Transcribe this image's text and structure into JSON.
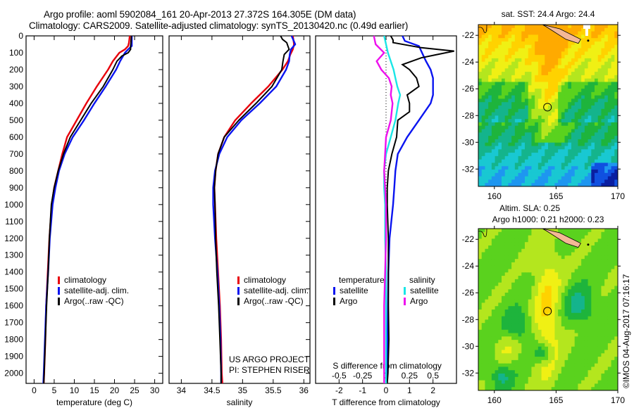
{
  "header": {
    "line1": "Argo profile: aoml 5902084_161 20-Apr-2013 27.372S 164.305E (DM data)",
    "line2": "Climatology: CARS2009. Satellite-adjusted climatology: synTS_20130420.nc (0.49d earlier)"
  },
  "credit": "©IMOS 04-Aug-2017 07:16:17",
  "project_note": [
    "US ARGO PROJECT",
    "PI: STEPHEN RISER"
  ],
  "colors": {
    "climatology": "#e8000b",
    "satellite": "#0a14f0",
    "argo": "#000000",
    "s_satellite": "#19e6e6",
    "s_argo": "#ee10ee"
  },
  "chart_data": [
    {
      "type": "line",
      "name": "temperature-profile",
      "title": "",
      "xlabel": "temperature (deg C)",
      "ylabel": "",
      "xlim": [
        -2,
        32
      ],
      "ylim": [
        2060,
        0
      ],
      "xticks": [
        0,
        5,
        10,
        15,
        20,
        25,
        30
      ],
      "yticks": [
        0,
        100,
        200,
        300,
        400,
        500,
        600,
        700,
        800,
        900,
        1000,
        1100,
        1200,
        1300,
        1400,
        1500,
        1600,
        1700,
        1800,
        1900,
        2000
      ],
      "grid": false,
      "legend": {
        "placement": "middle-right",
        "entries": [
          "climatology",
          "satellite-adj. clim.",
          "Argo(..raw -QC)"
        ]
      },
      "series": [
        {
          "name": "climatology",
          "color_key": "climatology",
          "depth": [
            0,
            40,
            60,
            80,
            100,
            150,
            200,
            300,
            400,
            500,
            600,
            700,
            800,
            900,
            1000,
            1200,
            1400,
            1600,
            1800,
            2000,
            2060
          ],
          "values": [
            23.8,
            23.6,
            23.4,
            22.6,
            21.2,
            19.6,
            18.4,
            15.6,
            13.0,
            10.6,
            8.2,
            7.0,
            6.0,
            5.0,
            4.4,
            3.8,
            3.4,
            3.0,
            2.8,
            2.5,
            2.4
          ]
        },
        {
          "name": "satellite-adj. clim.",
          "color_key": "satellite",
          "depth": [
            0,
            40,
            60,
            80,
            100,
            150,
            200,
            300,
            400,
            500,
            600,
            700,
            800,
            900,
            1000,
            1200,
            1400,
            1600,
            1800,
            2000,
            2060
          ],
          "values": [
            24.3,
            24.3,
            24.3,
            23.4,
            22.6,
            21.4,
            20.4,
            17.8,
            15.0,
            12.4,
            9.6,
            7.6,
            6.2,
            5.3,
            4.6,
            3.9,
            3.5,
            3.0,
            2.7,
            2.4,
            2.3
          ]
        },
        {
          "name": "Argo(..raw -QC)",
          "color_key": "argo",
          "depth": [
            0,
            40,
            60,
            80,
            100,
            120,
            150,
            200,
            300,
            400,
            500,
            600,
            700,
            800,
            900,
            1000,
            1200,
            1400,
            1600,
            1800,
            2000,
            2060
          ],
          "values": [
            24.2,
            24.1,
            24.0,
            24.0,
            23.4,
            21.8,
            20.6,
            19.6,
            17.2,
            14.2,
            11.6,
            9.0,
            7.3,
            6.0,
            5.0,
            4.3,
            3.8,
            3.5,
            3.1,
            2.8,
            2.5,
            2.4
          ]
        }
      ]
    },
    {
      "type": "line",
      "name": "salinity-profile",
      "title": "",
      "xlabel": "salinity",
      "ylabel": "",
      "xlim": [
        33.8,
        36.1
      ],
      "ylim": [
        2060,
        0
      ],
      "xticks": [
        34,
        34.5,
        35,
        35.5,
        36
      ],
      "grid": false,
      "legend": {
        "placement": "middle-right",
        "entries": [
          "climatology",
          "satellite-adj. clim.",
          "Argo(..raw -QC)"
        ]
      },
      "series": [
        {
          "name": "climatology",
          "color_key": "climatology",
          "depth": [
            0,
            50,
            80,
            110,
            150,
            200,
            300,
            400,
            500,
            600,
            700,
            800,
            900,
            1000,
            1200,
            1400,
            1600,
            1800,
            2000,
            2060
          ],
          "values": [
            35.82,
            35.84,
            35.82,
            35.78,
            35.74,
            35.65,
            35.42,
            35.14,
            34.88,
            34.7,
            34.6,
            34.56,
            34.54,
            34.55,
            34.57,
            34.6,
            34.63,
            34.65,
            34.66,
            34.67
          ]
        },
        {
          "name": "satellite-adj. clim.",
          "color_key": "satellite",
          "depth": [
            0,
            50,
            80,
            110,
            150,
            200,
            300,
            400,
            500,
            600,
            700,
            800,
            900,
            1000,
            1200,
            1400,
            1600,
            1800,
            2000,
            2060
          ],
          "values": [
            35.8,
            35.86,
            35.79,
            35.77,
            35.76,
            35.71,
            35.55,
            35.28,
            34.98,
            34.75,
            34.62,
            34.55,
            34.52,
            34.52,
            34.55,
            34.59,
            34.62,
            34.64,
            34.65,
            34.65
          ]
        },
        {
          "name": "Argo(..raw -QC)",
          "color_key": "argo",
          "depth": [
            0,
            20,
            40,
            60,
            80,
            110,
            150,
            200,
            300,
            400,
            500,
            600,
            700,
            800,
            900,
            1000,
            1200,
            1400,
            1600,
            1800,
            2000,
            2060
          ],
          "values": [
            35.62,
            35.65,
            35.72,
            35.74,
            35.76,
            35.68,
            35.66,
            35.64,
            35.48,
            35.22,
            34.94,
            34.7,
            34.6,
            34.56,
            34.54,
            34.55,
            34.56,
            34.58,
            34.61,
            34.63,
            34.65,
            34.65
          ]
        }
      ]
    },
    {
      "type": "line",
      "name": "difference-profile",
      "title": "",
      "xlabel": "T difference from climatology",
      "xlabel_top": "S difference from climatology",
      "xlim": [
        -3,
        3
      ],
      "ylim": [
        2060,
        0
      ],
      "xticks": [
        -2,
        -1,
        0,
        1,
        2
      ],
      "s_xticks": [
        -0.5,
        -0.25,
        0,
        0.25,
        0.5
      ],
      "s_scale_factor": 4,
      "zero_line": "dotted",
      "grid": false,
      "legend": {
        "placement": "lower-middle",
        "groups": [
          {
            "title": "temperature",
            "entries": [
              "satellite",
              "Argo"
            ]
          },
          {
            "title": "salinity",
            "entries": [
              "satellite",
              "Argo"
            ]
          }
        ]
      },
      "series": [
        {
          "name": "T satellite",
          "color_key": "satellite",
          "unit": "T",
          "depth": [
            0,
            30,
            60,
            90,
            120,
            150,
            200,
            250,
            300,
            350,
            400,
            500,
            600,
            700,
            800,
            900,
            1000,
            1200,
            1400,
            1600,
            1800,
            2000,
            2060
          ],
          "values": [
            0.7,
            0.8,
            1.4,
            1.5,
            1.6,
            1.7,
            1.9,
            2.0,
            2.0,
            2.0,
            1.9,
            1.4,
            0.9,
            0.5,
            0.4,
            0.35,
            0.3,
            0.15,
            0.1,
            0.08,
            0.06,
            0.04,
            0.03
          ]
        },
        {
          "name": "T Argo",
          "color_key": "argo",
          "unit": "T",
          "depth": [
            0,
            25,
            40,
            70,
            90,
            110,
            130,
            170,
            200,
            250,
            300,
            350,
            400,
            450,
            500,
            600,
            700,
            800,
            900,
            1000,
            1200,
            1400,
            1600,
            1800,
            2000,
            2060
          ],
          "values": [
            0.2,
            0.3,
            0.3,
            1.5,
            2.9,
            2.2,
            1.5,
            0.7,
            1.0,
            1.3,
            1.4,
            0.9,
            1.0,
            1.0,
            0.5,
            0.45,
            0.25,
            0.1,
            0.05,
            0.05,
            0.1,
            0.1,
            0.1,
            0.12,
            0.08,
            0.05
          ]
        },
        {
          "name": "S satellite",
          "color_key": "s_satellite",
          "unit": "S",
          "depth": [
            0,
            50,
            100,
            150,
            200,
            250,
            300,
            350,
            400,
            500,
            600,
            700,
            800,
            900,
            1000,
            1200,
            1400,
            1600,
            1800,
            2000,
            2060
          ],
          "values": [
            -0.02,
            0.0,
            0.02,
            0.05,
            0.08,
            0.1,
            0.12,
            0.15,
            0.13,
            0.1,
            0.05,
            0.0,
            -0.02,
            -0.02,
            -0.01,
            -0.01,
            0.0,
            0.0,
            0.0,
            0.0,
            0.0
          ]
        },
        {
          "name": "S Argo",
          "color_key": "s_argo",
          "unit": "S",
          "depth": [
            0,
            50,
            100,
            150,
            200,
            250,
            300,
            350,
            400,
            500,
            600,
            700,
            800,
            900,
            1000,
            1200,
            1400,
            1600,
            1800,
            2000,
            2060
          ],
          "values": [
            -0.13,
            -0.11,
            -0.02,
            -0.1,
            -0.05,
            0.03,
            0.06,
            0.05,
            0.07,
            0.05,
            0.0,
            -0.01,
            -0.02,
            -0.01,
            0.0,
            0.0,
            -0.01,
            -0.02,
            -0.02,
            -0.02,
            -0.02
          ]
        }
      ]
    },
    {
      "type": "heatmap",
      "name": "sst-map",
      "title": "sat. SST: 24.4 Argo: 24.4",
      "xlim": [
        158.7,
        170
      ],
      "ylim": [
        -33.3,
        -21.2
      ],
      "xticks": [
        160,
        165,
        170
      ],
      "yticks": [
        -22,
        -24,
        -26,
        -28,
        -30,
        -32
      ],
      "marker": {
        "lon": 164.305,
        "lat": -27.372
      },
      "description": "warm orange/yellow in north, green mid, cyan/blue in south-east"
    },
    {
      "type": "heatmap",
      "name": "sla-map",
      "title_line1": "Altim. SLA: 0.25",
      "title_line2": "Argo h1000: 0.21 h2000: 0.23",
      "xlim": [
        158.7,
        170
      ],
      "ylim": [
        -33.3,
        -21.2
      ],
      "xticks": [
        160,
        165,
        170
      ],
      "yticks": [
        -22,
        -24,
        -26,
        -28,
        -30,
        -32
      ],
      "marker": {
        "lon": 164.305,
        "lat": -27.372
      },
      "description": "green background with yellow/orange ridge through centre and green/cyan eddies"
    }
  ]
}
